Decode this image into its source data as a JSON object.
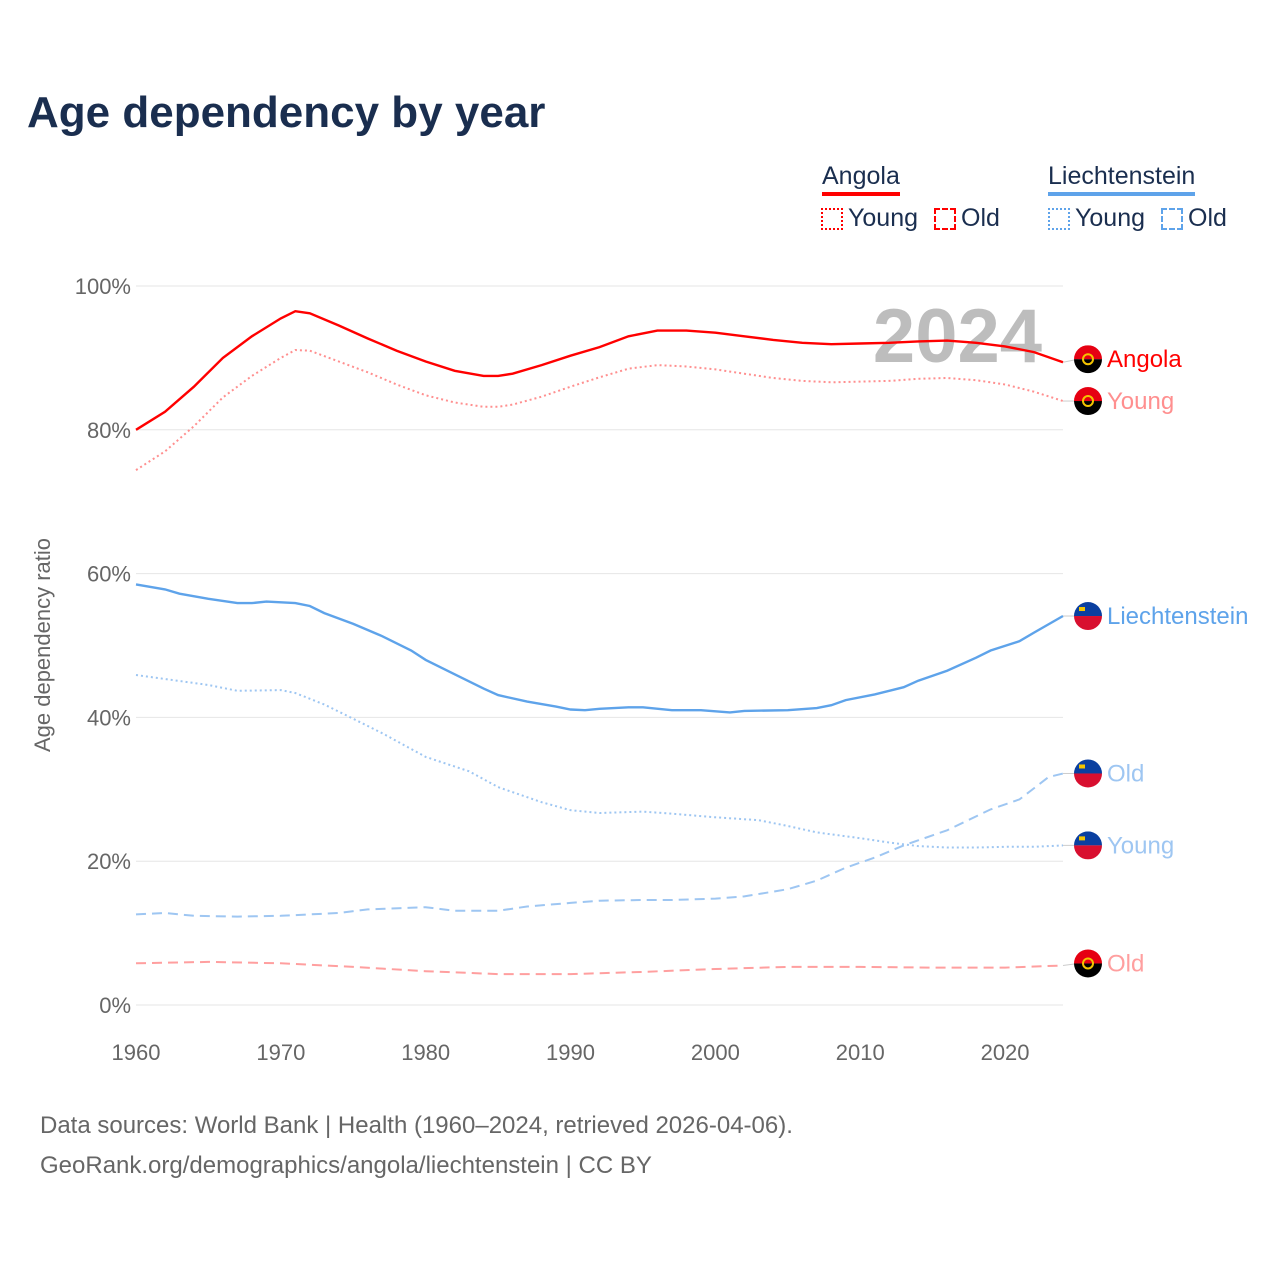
{
  "title": "Age dependency by year",
  "legend": {
    "groups": [
      {
        "country": "Angola",
        "color": "#ff0000",
        "items": [
          {
            "label": "Young",
            "style": "dotted"
          },
          {
            "label": "Old",
            "style": "dashed"
          }
        ]
      },
      {
        "country": "Liechtenstein",
        "color": "#5ea3ea",
        "items": [
          {
            "label": "Young",
            "style": "dotted"
          },
          {
            "label": "Old",
            "style": "dashed"
          }
        ]
      }
    ]
  },
  "year_label": "2024",
  "source": {
    "line1": "Data sources: World Bank | Health (1960–2024, retrieved 2026-04-06).",
    "line2": "GeoRank.org/demographics/angola/liechtenstein | CC BY"
  },
  "chart_data": {
    "type": "line",
    "title": "Age dependency by year",
    "xlabel": "",
    "ylabel": "Age dependency ratio",
    "xlim": [
      1960,
      2024
    ],
    "ylim": [
      0,
      100
    ],
    "x_ticks": [
      1960,
      1970,
      1980,
      1990,
      2000,
      2010,
      2020
    ],
    "y_ticks": [
      0,
      20,
      40,
      60,
      80,
      100
    ],
    "y_tick_labels": [
      "0%",
      "20%",
      "40%",
      "60%",
      "80%",
      "100%"
    ],
    "grid": true,
    "series": [
      {
        "name": "Angola",
        "end_label": "Angola",
        "color": "#ff0000",
        "style": "solid",
        "flag": "angola",
        "x": [
          1960,
          1962,
          1964,
          1966,
          1968,
          1970,
          1971,
          1972,
          1974,
          1976,
          1978,
          1980,
          1982,
          1984,
          1985,
          1986,
          1988,
          1990,
          1992,
          1994,
          1996,
          1998,
          2000,
          2002,
          2004,
          2006,
          2008,
          2010,
          2012,
          2014,
          2016,
          2018,
          2020,
          2022,
          2024
        ],
        "y": [
          80,
          82.5,
          86,
          90,
          93,
          95.5,
          96.5,
          96.2,
          94.5,
          92.7,
          91,
          89.5,
          88.2,
          87.5,
          87.5,
          87.8,
          89,
          90.3,
          91.5,
          93,
          93.8,
          93.8,
          93.5,
          93,
          92.5,
          92.1,
          91.9,
          92,
          92.1,
          92.3,
          92.4,
          92.1,
          91.6,
          90.8,
          89.4
        ]
      },
      {
        "name": "Angola Young",
        "end_label": "Young",
        "color": "#ff8f8f",
        "style": "dotted",
        "flag": "angola",
        "x": [
          1960,
          1962,
          1964,
          1966,
          1968,
          1970,
          1971,
          1972,
          1974,
          1976,
          1978,
          1980,
          1982,
          1984,
          1985,
          1986,
          1988,
          1990,
          1992,
          1994,
          1996,
          1998,
          2000,
          2002,
          2004,
          2006,
          2008,
          2010,
          2012,
          2014,
          2016,
          2018,
          2020,
          2022,
          2024
        ],
        "y": [
          74.4,
          77,
          80.5,
          84.5,
          87.5,
          90,
          91.1,
          91,
          89.5,
          88,
          86.3,
          84.8,
          83.8,
          83.2,
          83.2,
          83.5,
          84.6,
          86,
          87.3,
          88.5,
          89,
          88.8,
          88.4,
          87.8,
          87.2,
          86.8,
          86.6,
          86.7,
          86.8,
          87.1,
          87.2,
          86.9,
          86.3,
          85.3,
          84
        ]
      },
      {
        "name": "Angola Old",
        "end_label": "Old",
        "color": "#ff9f9f",
        "style": "dashed",
        "flag": "angola",
        "x": [
          1960,
          1965,
          1970,
          1975,
          1980,
          1985,
          1990,
          1995,
          2000,
          2005,
          2010,
          2015,
          2020,
          2024
        ],
        "y": [
          5.8,
          6.0,
          5.8,
          5.3,
          4.7,
          4.3,
          4.3,
          4.6,
          5.0,
          5.3,
          5.3,
          5.2,
          5.2,
          5.5
        ]
      },
      {
        "name": "Liechtenstein",
        "end_label": "Liechtenstein",
        "color": "#5ea3ea",
        "style": "solid",
        "flag": "liechtenstein",
        "x": [
          1960,
          1962,
          1963,
          1965,
          1967,
          1968,
          1969,
          1971,
          1972,
          1973,
          1975,
          1977,
          1979,
          1980,
          1982,
          1984,
          1985,
          1987,
          1989,
          1990,
          1991,
          1992,
          1994,
          1995,
          1997,
          1999,
          2001,
          2002,
          2005,
          2007,
          2008,
          2009,
          2011,
          2013,
          2014,
          2016,
          2018,
          2019,
          2021,
          2022,
          2024
        ],
        "y": [
          58.5,
          57.8,
          57.2,
          56.5,
          55.9,
          55.9,
          56.1,
          55.9,
          55.5,
          54.5,
          53,
          51.3,
          49.3,
          48,
          46,
          44,
          43.1,
          42.2,
          41.5,
          41.1,
          41,
          41.2,
          41.4,
          41.4,
          41,
          41,
          40.7,
          40.9,
          41,
          41.3,
          41.7,
          42.4,
          43.2,
          44.2,
          45.1,
          46.5,
          48.3,
          49.3,
          50.6,
          51.8,
          54.1
        ]
      },
      {
        "name": "Liechtenstein Old",
        "end_label": "Old",
        "color": "#9ec6f2",
        "style": "dashed",
        "flag": "liechtenstein",
        "x": [
          1960,
          1962,
          1964,
          1967,
          1970,
          1974,
          1976,
          1980,
          1982,
          1985,
          1987,
          1990,
          1992,
          1995,
          1997,
          2000,
          2002,
          2005,
          2007,
          2009,
          2011,
          2013,
          2016,
          2019,
          2021,
          2023,
          2024
        ],
        "y": [
          12.6,
          12.8,
          12.4,
          12.3,
          12.4,
          12.8,
          13.3,
          13.6,
          13.1,
          13.1,
          13.7,
          14.2,
          14.5,
          14.6,
          14.6,
          14.8,
          15.1,
          16.1,
          17.3,
          19.1,
          20.5,
          22.2,
          24.3,
          27.2,
          28.6,
          31.7,
          32.2
        ]
      },
      {
        "name": "Liechtenstein Young",
        "end_label": "Young",
        "color": "#9ec6f2",
        "style": "dotted",
        "flag": "liechtenstein",
        "x": [
          1960,
          1965,
          1967,
          1970,
          1971,
          1973,
          1975,
          1977,
          1980,
          1983,
          1985,
          1988,
          1990,
          1992,
          1995,
          1997,
          2000,
          2003,
          2005,
          2007,
          2010,
          2012,
          2014,
          2016,
          2018,
          2020,
          2022,
          2024
        ],
        "y": [
          45.9,
          44.5,
          43.7,
          43.8,
          43.4,
          41.8,
          39.8,
          37.8,
          34.5,
          32.5,
          30.3,
          28.2,
          27.1,
          26.7,
          26.9,
          26.6,
          26.1,
          25.7,
          24.9,
          24,
          23.2,
          22.6,
          22.1,
          21.9,
          21.9,
          22,
          22,
          22.2
        ]
      }
    ]
  }
}
